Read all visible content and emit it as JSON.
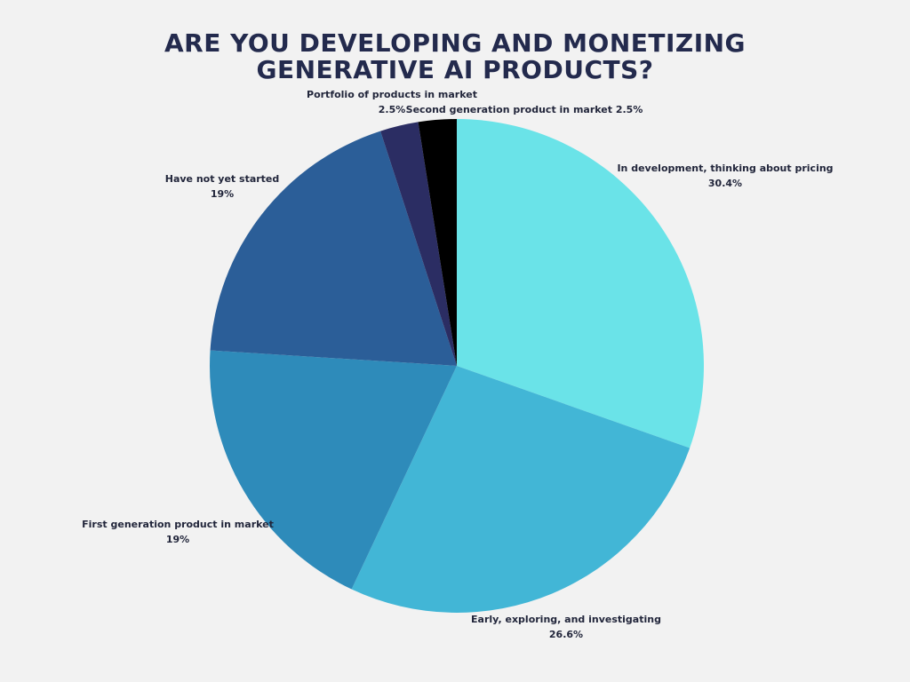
{
  "chart_data": {
    "type": "pie",
    "title": "ARE YOU DEVELOPING AND MONETIZING\nGENERATIVE AI PRODUCTS?",
    "slices": [
      {
        "label": "In development, thinking about pricing",
        "value": 30.4,
        "value_label": "30.4%",
        "color": "#6ae3e8"
      },
      {
        "label": "Early, exploring, and investigating",
        "value": 26.6,
        "value_label": "26.6%",
        "color": "#42b6d6"
      },
      {
        "label": "First generation product in market",
        "value": 19,
        "value_label": "19%",
        "color": "#2e8bba"
      },
      {
        "label": "Have not yet started",
        "value": 19,
        "value_label": "19%",
        "color": "#2b5e98"
      },
      {
        "label": "Portfolio of products in market",
        "value": 2.5,
        "value_label": "2.5%",
        "color": "#2b2d63"
      },
      {
        "label": "Second generation product in market",
        "value": 2.5,
        "value_label": "2.5%",
        "color": "#000000"
      }
    ]
  }
}
